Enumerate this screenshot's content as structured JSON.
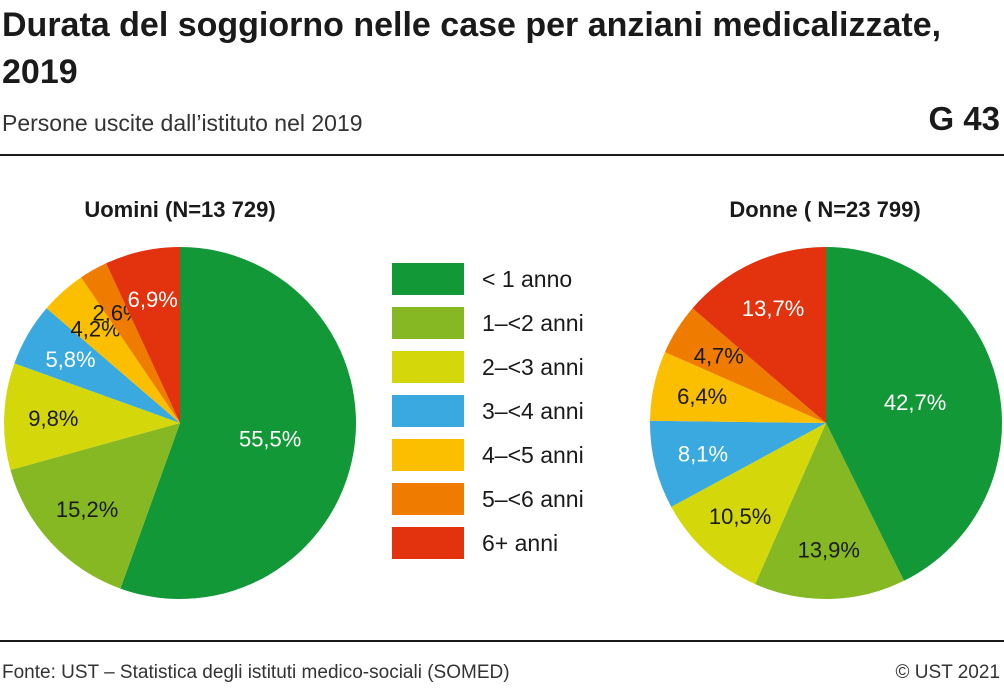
{
  "header": {
    "title": "Durata del soggiorno nelle case per anziani medicalizzate, 2019",
    "subtitle": "Persone uscite dall’istituto nel 2019",
    "code": "G 43"
  },
  "footer": {
    "source": "Fonte: UST – Statistica degli istituti medico-sociali (SOMED)",
    "copyright": "© UST 2021"
  },
  "legend": [
    {
      "label": "< 1 anno",
      "color": "#139838"
    },
    {
      "label": "1–<2 anni",
      "color": "#86b823"
    },
    {
      "label": "2–<3 anni",
      "color": "#d4d80b"
    },
    {
      "label": "3–<4 anni",
      "color": "#39a9e0"
    },
    {
      "label": "4–<5 anni",
      "color": "#fbbf00"
    },
    {
      "label": "5–<6 anni",
      "color": "#ef7c00"
    },
    {
      "label": "6+ anni",
      "color": "#e2320e"
    }
  ],
  "chart_data": [
    {
      "type": "pie",
      "title": "Uomini (N=13 729)",
      "categories": [
        "< 1 anno",
        "1–<2 anni",
        "2–<3 anni",
        "3–<4 anni",
        "4–<5 anni",
        "5–<6 anni",
        "6+ anni"
      ],
      "values": [
        55.5,
        15.2,
        9.8,
        5.8,
        4.2,
        2.6,
        6.9
      ],
      "labels": [
        "55,5%",
        "15,2%",
        "9,8%",
        "5,8%",
        "4,2%",
        "2,6%",
        "6,9%"
      ],
      "label_colors": [
        "#ffffff",
        "#1a1a1a",
        "#1a1a1a",
        "#ffffff",
        "#1a1a1a",
        "#1a1a1a",
        "#ffffff"
      ]
    },
    {
      "type": "pie",
      "title": "Donne ( N=23 799)",
      "categories": [
        "< 1 anno",
        "1–<2 anni",
        "2–<3 anni",
        "3–<4 anni",
        "4–<5 anni",
        "5–<6 anni",
        "6+ anni"
      ],
      "values": [
        42.7,
        13.9,
        10.5,
        8.1,
        6.4,
        4.7,
        13.7
      ],
      "labels": [
        "42,7%",
        "13,9%",
        "10,5%",
        "8,1%",
        "6,4%",
        "4,7%",
        "13,7%"
      ],
      "label_colors": [
        "#ffffff",
        "#1a1a1a",
        "#1a1a1a",
        "#ffffff",
        "#1a1a1a",
        "#1a1a1a",
        "#ffffff"
      ]
    }
  ]
}
